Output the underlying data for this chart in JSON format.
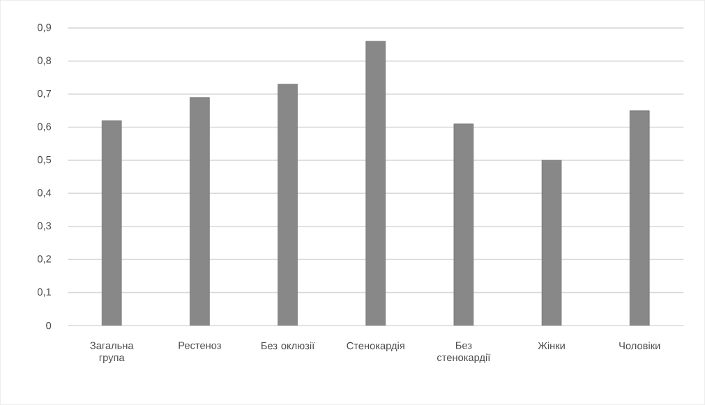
{
  "chart_data": {
    "type": "bar",
    "categories": [
      "Загальна група",
      "Рестеноз",
      "Без оклюзії",
      "Стенокардія",
      "Без стенокардії",
      "Жінки",
      "Чоловіки"
    ],
    "values": [
      0.62,
      0.69,
      0.73,
      0.86,
      0.61,
      0.5,
      0.65
    ],
    "color": "#888888",
    "ylim": [
      0,
      0.9
    ],
    "yticks": [
      {
        "value": 0,
        "label": "0"
      },
      {
        "value": 0.1,
        "label": "0,1"
      },
      {
        "value": 0.2,
        "label": "0,2"
      },
      {
        "value": 0.3,
        "label": "0,3"
      },
      {
        "value": 0.4,
        "label": "0,4"
      },
      {
        "value": 0.5,
        "label": "0,5"
      },
      {
        "value": 0.6,
        "label": "0,6"
      },
      {
        "value": 0.7,
        "label": "0,7"
      },
      {
        "value": 0.8,
        "label": "0,8"
      },
      {
        "value": 0.9,
        "label": "0,9"
      }
    ],
    "grid": "y"
  }
}
